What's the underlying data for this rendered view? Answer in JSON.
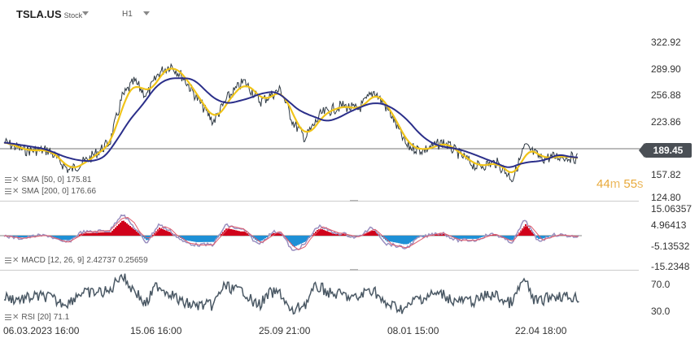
{
  "header": {
    "symbol": "TSLA.US",
    "type": "Stock",
    "timeframe": "H1"
  },
  "price": {
    "current": "189.45",
    "axis_labels": [
      "322.92",
      "289.90",
      "256.88",
      "223.86",
      "157.82",
      "124.80"
    ],
    "countdown_min": "44",
    "countdown_min_unit": "m",
    "countdown_sec": "55",
    "countdown_sec_unit": "s"
  },
  "indicators": {
    "sma50": {
      "label": "SMA",
      "params": "[50, 0]",
      "value": "175.81",
      "color": "#f0c419"
    },
    "sma200": {
      "label": "SMA",
      "params": "[200, 0]",
      "value": "176.66",
      "color": "#2b2f8a"
    },
    "macd": {
      "label": "MACD",
      "params": "[12, 26, 9]",
      "value1": "2.42737",
      "value2": "0.25659",
      "axis_labels": [
        "15.06357",
        "4.96413",
        "-5.13532",
        "-15.2348"
      ]
    },
    "rsi": {
      "label": "RSI",
      "params": "[20]",
      "value": "71.1",
      "axis_labels": [
        "70.0",
        "30.0"
      ]
    }
  },
  "x_axis": [
    "06.03.2023  16:00",
    "15.06  16:00",
    "25.09  21:00",
    "08.01  15:00",
    "22.04  18:00"
  ],
  "colors": {
    "candle": "#2f3a44",
    "sma50": "#f0c419",
    "sma200": "#2b2f8a",
    "macd_pos": "#d0021b",
    "macd_neg": "#1e90d6",
    "price_line": "#555"
  }
}
